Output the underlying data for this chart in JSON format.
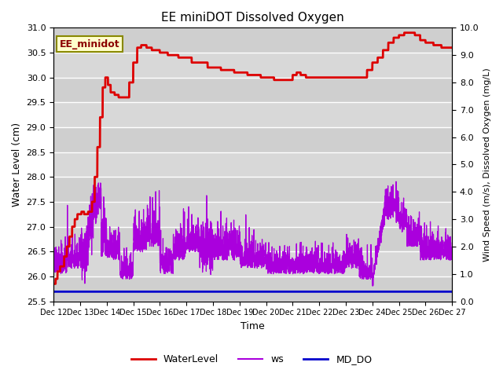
{
  "title": "EE miniDOT Dissolved Oxygen",
  "xlabel": "Time",
  "ylabel_left": "Water Level (cm)",
  "ylabel_right": "Wind Speed (m/s), Dissolved Oxygen (mg/L)",
  "legend_label": "EE_minidot",
  "ylim_left": [
    25.5,
    31.0
  ],
  "ylim_right": [
    0.0,
    10.0
  ],
  "yticks_left": [
    25.5,
    26.0,
    26.5,
    27.0,
    27.5,
    28.0,
    28.5,
    29.0,
    29.5,
    30.0,
    30.5,
    31.0
  ],
  "yticks_right": [
    0.0,
    1.0,
    2.0,
    3.0,
    4.0,
    5.0,
    6.0,
    7.0,
    8.0,
    9.0,
    10.0
  ],
  "plot_bg_color": "#d8d8d8",
  "wl_color": "#dd0000",
  "ws_color": "#aa00dd",
  "do_color": "#0000cc",
  "grid_color": "#f0f0f0",
  "xtick_labels": [
    "Dec 12",
    "Dec 13",
    "Dec 14",
    "Dec 15",
    "Dec 16",
    "Dec 17",
    "Dec 18",
    "Dec 19",
    "Dec 20",
    "Dec 21",
    "Dec 22",
    "Dec 23",
    "Dec 24",
    "Dec 25",
    "Dec 26",
    "Dec 27"
  ],
  "legend_box_color": "#ffffcc",
  "legend_box_edge": "#888800"
}
